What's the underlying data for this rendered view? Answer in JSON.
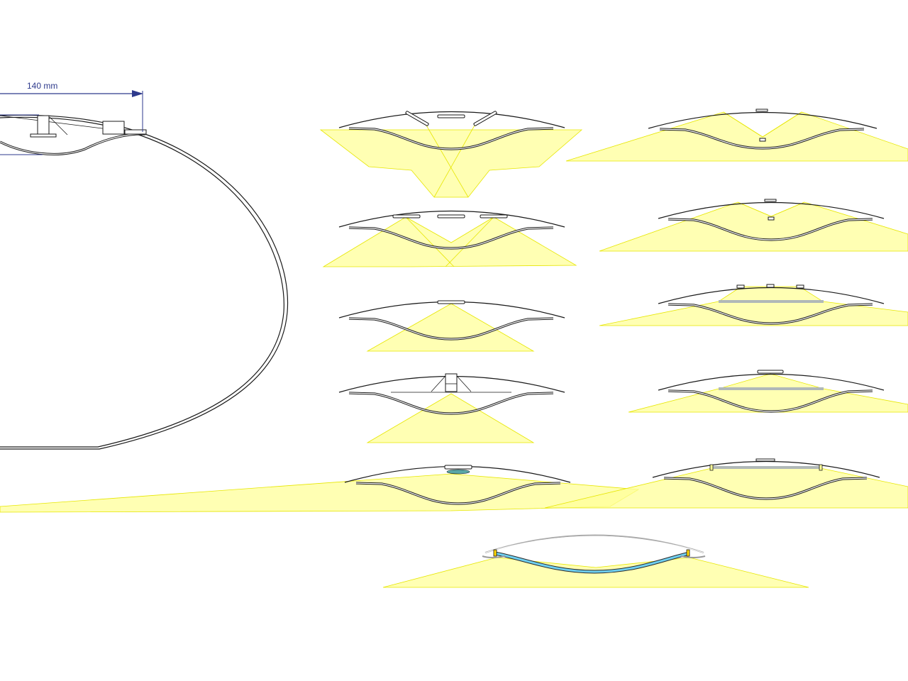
{
  "dimension": {
    "label": "140 mm",
    "color": "#2e3a8c"
  },
  "colors": {
    "light": "#ffff99",
    "light_edge": "#e6e600",
    "outline": "#1a1a1a",
    "diffuser_grey": "#b0b8b8",
    "lens_teal": "#5aa6a6",
    "edge_glow": "#6ecff0"
  },
  "panels": [
    {
      "name": "section-three-tilted-emitters"
    },
    {
      "name": "section-center-down-emitter-wide"
    },
    {
      "name": "section-three-emitters-overlap"
    },
    {
      "name": "section-center-down-emitter-narrow"
    },
    {
      "name": "section-single-top-emitter"
    },
    {
      "name": "section-three-emitters-diffuser"
    },
    {
      "name": "section-stem-mounted-emitter"
    },
    {
      "name": "section-top-emitter-diffuser"
    },
    {
      "name": "section-lens-emitter-wide"
    },
    {
      "name": "section-edge-emitters-diffuser"
    },
    {
      "name": "section-edge-lit-panel"
    }
  ]
}
